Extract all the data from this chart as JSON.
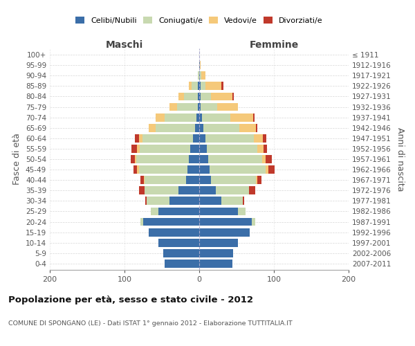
{
  "age_groups": [
    "0-4",
    "5-9",
    "10-14",
    "15-19",
    "20-24",
    "25-29",
    "30-34",
    "35-39",
    "40-44",
    "45-49",
    "50-54",
    "55-59",
    "60-64",
    "65-69",
    "70-74",
    "75-79",
    "80-84",
    "85-89",
    "90-94",
    "95-99",
    "100+"
  ],
  "birth_years": [
    "2007-2011",
    "2002-2006",
    "1997-2001",
    "1992-1996",
    "1987-1991",
    "1982-1986",
    "1977-1981",
    "1972-1976",
    "1967-1971",
    "1962-1966",
    "1957-1961",
    "1952-1956",
    "1947-1951",
    "1942-1946",
    "1937-1941",
    "1932-1936",
    "1927-1931",
    "1922-1926",
    "1917-1921",
    "1912-1916",
    "≤ 1911"
  ],
  "male": {
    "celibi": [
      46,
      48,
      55,
      68,
      75,
      55,
      40,
      28,
      18,
      16,
      14,
      12,
      8,
      6,
      4,
      2,
      2,
      2,
      0,
      0,
      0
    ],
    "coniugati": [
      0,
      0,
      0,
      0,
      4,
      10,
      30,
      45,
      55,
      65,
      70,
      68,
      68,
      52,
      42,
      28,
      18,
      8,
      2,
      0,
      0
    ],
    "vedovi": [
      0,
      0,
      0,
      0,
      0,
      0,
      0,
      0,
      1,
      2,
      2,
      3,
      5,
      10,
      12,
      10,
      8,
      4,
      0,
      0,
      0
    ],
    "divorziati": [
      0,
      0,
      0,
      0,
      0,
      0,
      2,
      8,
      5,
      5,
      6,
      8,
      5,
      0,
      0,
      0,
      0,
      0,
      0,
      0,
      0
    ]
  },
  "female": {
    "nubili": [
      44,
      45,
      52,
      68,
      70,
      52,
      30,
      22,
      16,
      14,
      12,
      10,
      8,
      6,
      4,
      2,
      2,
      2,
      1,
      1,
      0
    ],
    "coniugate": [
      0,
      0,
      0,
      0,
      5,
      10,
      28,
      45,
      60,
      75,
      72,
      68,
      65,
      48,
      38,
      22,
      14,
      6,
      2,
      0,
      0
    ],
    "vedove": [
      0,
      0,
      0,
      0,
      0,
      0,
      0,
      0,
      2,
      4,
      5,
      8,
      12,
      22,
      30,
      28,
      28,
      22,
      5,
      1,
      0
    ],
    "divorziate": [
      0,
      0,
      0,
      0,
      0,
      0,
      2,
      8,
      5,
      8,
      8,
      5,
      5,
      2,
      2,
      0,
      2,
      2,
      0,
      0,
      0
    ]
  },
  "colors": {
    "celibi_nubili": "#3B6EA8",
    "coniugati": "#C8D9B0",
    "vedovi": "#F5C97A",
    "divorziati": "#C0392B"
  },
  "xlim": 200,
  "title": "Popolazione per età, sesso e stato civile - 2012",
  "subtitle": "COMUNE DI SPONGANO (LE) - Dati ISTAT 1° gennaio 2012 - Elaborazione TUTTITALIA.IT",
  "ylabel_left": "Fasce di età",
  "ylabel_right": "Anni di nascita",
  "xlabel_left": "Maschi",
  "xlabel_right": "Femmine",
  "bg_color": "#FFFFFF",
  "grid_color": "#CCCCCC"
}
